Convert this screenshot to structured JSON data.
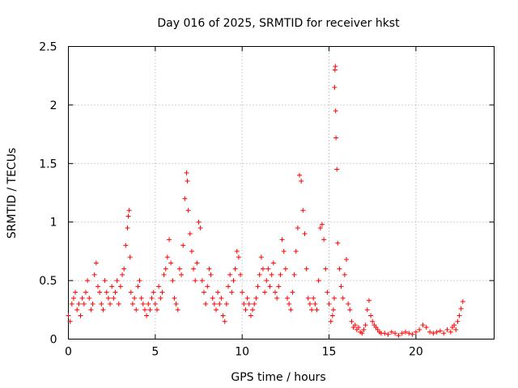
{
  "chart_data": {
    "type": "scatter",
    "title": "Day 016 of 2025, SRMTID for receiver hkst",
    "xlabel": "GPS time / hours",
    "ylabel": "SRMTID / TECUs",
    "xlim": [
      0,
      24.5
    ],
    "ylim": [
      0,
      2.5
    ],
    "xticks": [
      0,
      5,
      10,
      15,
      20
    ],
    "xtick_labels": [
      "0",
      "5",
      "10",
      "15",
      "20"
    ],
    "yticks": [
      0,
      0.5,
      1,
      1.5,
      2,
      2.5
    ],
    "ytick_labels": [
      "0",
      "0.5",
      "1",
      "1.5",
      "2",
      "2.5"
    ],
    "grid": true,
    "marker": "+",
    "color": "#ff0000",
    "series": [
      {
        "name": "SRMTID",
        "x": [
          0.0,
          0.1,
          0.2,
          0.3,
          0.4,
          0.5,
          0.6,
          0.7,
          0.8,
          0.9,
          1.0,
          1.1,
          1.2,
          1.3,
          1.4,
          1.5,
          1.6,
          1.7,
          1.8,
          1.9,
          2.0,
          2.1,
          2.2,
          2.3,
          2.4,
          2.5,
          2.6,
          2.7,
          2.8,
          2.9,
          3.0,
          3.1,
          3.2,
          3.3,
          3.4,
          3.45,
          3.5,
          3.55,
          3.6,
          3.7,
          3.8,
          3.9,
          4.0,
          4.1,
          4.2,
          4.3,
          4.4,
          4.5,
          4.6,
          4.7,
          4.8,
          4.9,
          5.0,
          5.1,
          5.2,
          5.3,
          5.4,
          5.5,
          5.6,
          5.7,
          5.8,
          5.9,
          6.0,
          6.1,
          6.2,
          6.3,
          6.4,
          6.5,
          6.6,
          6.7,
          6.8,
          6.85,
          6.9,
          7.0,
          7.1,
          7.2,
          7.3,
          7.4,
          7.5,
          7.6,
          7.7,
          7.8,
          7.9,
          8.0,
          8.1,
          8.2,
          8.3,
          8.4,
          8.5,
          8.6,
          8.7,
          8.8,
          8.9,
          9.0,
          9.1,
          9.2,
          9.3,
          9.4,
          9.5,
          9.6,
          9.7,
          9.8,
          9.9,
          10.0,
          10.1,
          10.2,
          10.3,
          10.4,
          10.5,
          10.6,
          10.7,
          10.8,
          10.9,
          11.0,
          11.1,
          11.2,
          11.3,
          11.4,
          11.5,
          11.6,
          11.7,
          11.8,
          11.9,
          12.0,
          12.1,
          12.2,
          12.3,
          12.4,
          12.5,
          12.6,
          12.7,
          12.8,
          12.9,
          13.0,
          13.1,
          13.2,
          13.3,
          13.4,
          13.5,
          13.6,
          13.7,
          13.8,
          13.9,
          14.0,
          14.1,
          14.2,
          14.3,
          14.4,
          14.5,
          14.6,
          14.7,
          14.8,
          14.9,
          15.0,
          15.1,
          15.2,
          15.25,
          15.3,
          15.32,
          15.34,
          15.36,
          15.38,
          15.4,
          15.45,
          15.5,
          15.6,
          15.7,
          15.8,
          15.9,
          16.0,
          16.1,
          16.2,
          16.3,
          16.4,
          16.5,
          16.6,
          16.7,
          16.8,
          16.9,
          17.0,
          17.1,
          17.2,
          17.3,
          17.4,
          17.5,
          17.6,
          17.7,
          17.8,
          17.9,
          18.0,
          18.2,
          18.4,
          18.6,
          18.8,
          19.0,
          19.2,
          19.4,
          19.6,
          19.8,
          20.0,
          20.2,
          20.4,
          20.6,
          20.8,
          21.0,
          21.2,
          21.4,
          21.6,
          21.8,
          22.0,
          22.1,
          22.2,
          22.3,
          22.4,
          22.5,
          22.6,
          22.7
        ],
        "y": [
          0.2,
          0.15,
          0.3,
          0.35,
          0.4,
          0.25,
          0.3,
          0.2,
          0.35,
          0.3,
          0.4,
          0.5,
          0.35,
          0.25,
          0.3,
          0.55,
          0.65,
          0.45,
          0.4,
          0.3,
          0.25,
          0.5,
          0.4,
          0.35,
          0.3,
          0.45,
          0.35,
          0.4,
          0.5,
          0.3,
          0.45,
          0.55,
          0.6,
          0.8,
          0.95,
          1.05,
          1.1,
          0.7,
          0.4,
          0.3,
          0.35,
          0.25,
          0.45,
          0.5,
          0.35,
          0.3,
          0.25,
          0.2,
          0.3,
          0.25,
          0.35,
          0.4,
          0.3,
          0.25,
          0.45,
          0.35,
          0.4,
          0.55,
          0.6,
          0.7,
          0.85,
          0.65,
          0.5,
          0.35,
          0.3,
          0.25,
          0.6,
          0.55,
          0.8,
          1.2,
          1.42,
          1.35,
          1.1,
          0.9,
          0.75,
          0.6,
          0.5,
          0.65,
          1.0,
          0.95,
          0.5,
          0.4,
          0.3,
          0.45,
          0.6,
          0.55,
          0.35,
          0.3,
          0.25,
          0.4,
          0.3,
          0.35,
          0.2,
          0.15,
          0.3,
          0.45,
          0.55,
          0.4,
          0.5,
          0.6,
          0.75,
          0.7,
          0.55,
          0.4,
          0.3,
          0.25,
          0.35,
          0.3,
          0.2,
          0.25,
          0.3,
          0.35,
          0.45,
          0.55,
          0.7,
          0.6,
          0.4,
          0.5,
          0.6,
          0.45,
          0.55,
          0.65,
          0.4,
          0.35,
          0.45,
          0.55,
          0.85,
          0.75,
          0.6,
          0.35,
          0.3,
          0.25,
          0.4,
          0.55,
          0.75,
          0.95,
          1.4,
          1.35,
          1.1,
          0.9,
          0.6,
          0.35,
          0.3,
          0.25,
          0.35,
          0.3,
          0.25,
          0.5,
          0.95,
          0.98,
          0.85,
          0.6,
          0.4,
          0.3,
          0.15,
          0.2,
          0.25,
          0.35,
          2.15,
          2.3,
          2.33,
          1.95,
          1.72,
          1.45,
          0.82,
          0.6,
          0.45,
          0.35,
          0.55,
          0.68,
          0.3,
          0.25,
          0.15,
          0.1,
          0.12,
          0.08,
          0.1,
          0.06,
          0.05,
          0.08,
          0.12,
          0.25,
          0.33,
          0.2,
          0.15,
          0.12,
          0.1,
          0.08,
          0.06,
          0.05,
          0.05,
          0.04,
          0.06,
          0.05,
          0.03,
          0.05,
          0.06,
          0.05,
          0.04,
          0.06,
          0.08,
          0.12,
          0.1,
          0.06,
          0.05,
          0.06,
          0.07,
          0.05,
          0.08,
          0.06,
          0.1,
          0.12,
          0.08,
          0.15,
          0.2,
          0.26,
          0.32
        ]
      }
    ]
  }
}
